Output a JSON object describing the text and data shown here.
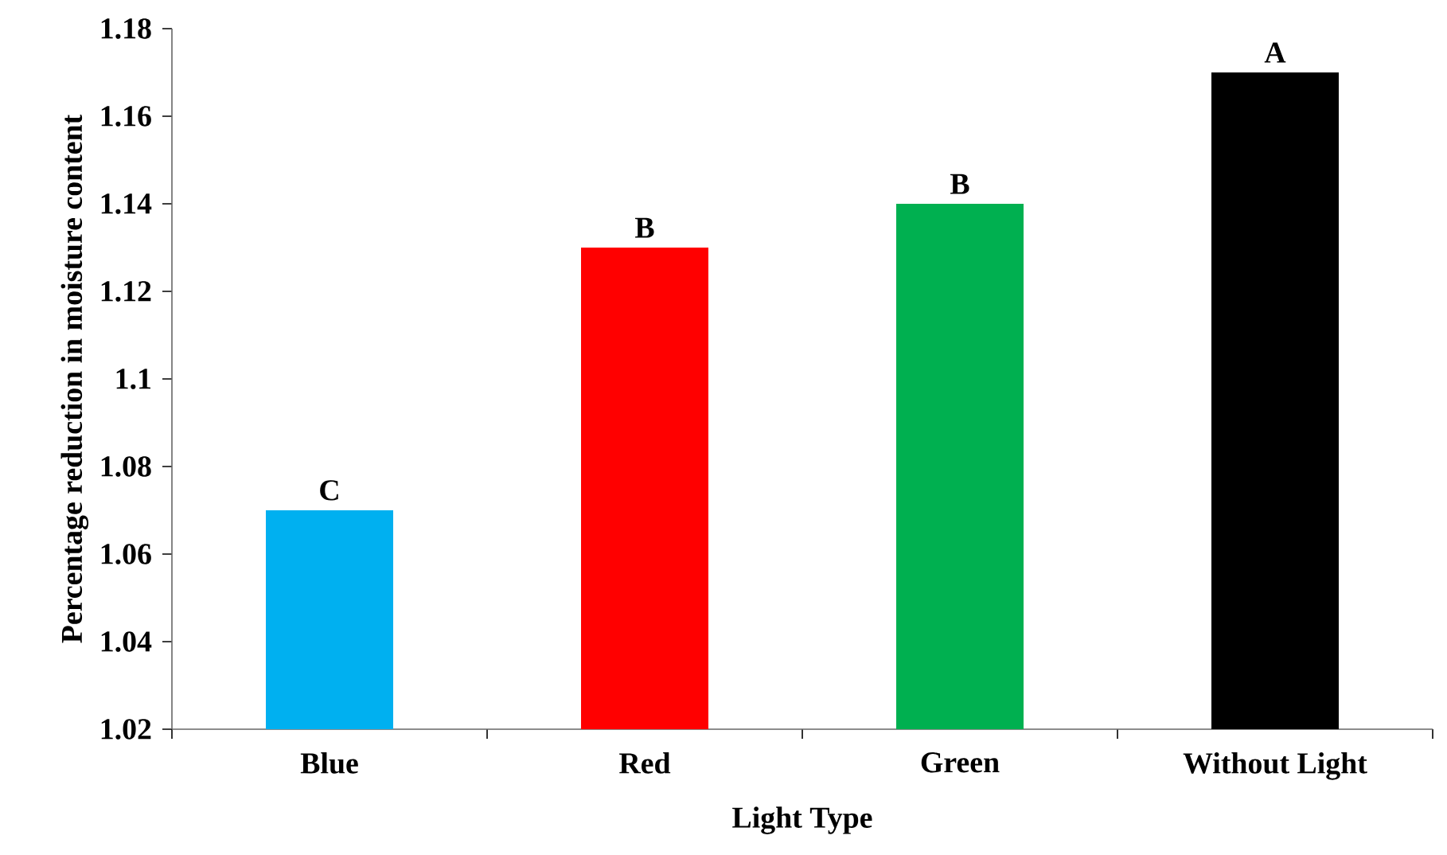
{
  "chart_data": {
    "type": "bar",
    "xlabel": "Light Type",
    "ylabel": "Percentage reduction in moisture content",
    "categories": [
      "Blue",
      "Red",
      "Green",
      "Without Light"
    ],
    "values": [
      1.07,
      1.13,
      1.14,
      1.17
    ],
    "colors": [
      "#00b0f0",
      "#ff0000",
      "#00b050",
      "#000000"
    ],
    "value_labels": [
      "C",
      "B",
      "B",
      "A"
    ],
    "ylim": [
      1.02,
      1.18
    ],
    "yticks": [
      1.02,
      1.04,
      1.06,
      1.08,
      1.1,
      1.12,
      1.14,
      1.16,
      1.18
    ],
    "grid": false
  }
}
